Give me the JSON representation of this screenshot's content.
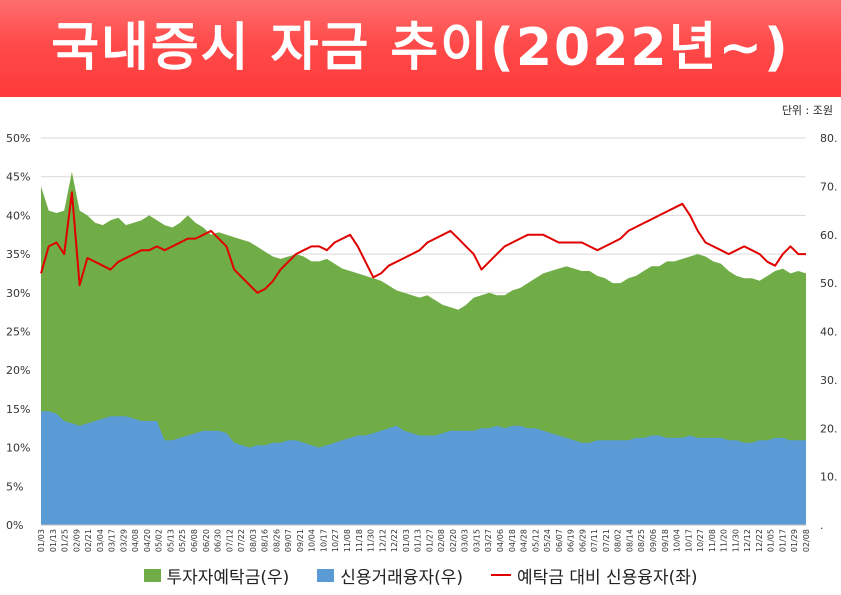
{
  "banner": {
    "title": "국내증시 자금 추이(2022년~)"
  },
  "unit_label": "단위 : 조원",
  "colors": {
    "banner": "#ff4d4d",
    "deposit": "#70ad47",
    "credit": "#5b9bd5",
    "ratio": "#e00000"
  },
  "chart_data": {
    "type": "area",
    "title": "",
    "xlabel": "",
    "ylabel_left": "",
    "ylabel_right": "",
    "left_axis": {
      "ylim": [
        0,
        50
      ],
      "ticks": [
        "0%",
        "5%",
        "10%",
        "15%",
        "20%",
        "25%",
        "30%",
        "35%",
        "40%",
        "45%",
        "50%"
      ]
    },
    "right_axis": {
      "ylim": [
        0,
        80
      ],
      "ticks": [
        ".",
        "10.",
        "20.",
        "30.",
        "40.",
        "50.",
        "60.",
        "70.",
        "80."
      ]
    },
    "grid": true,
    "legend_position": "bottom",
    "x_tick_labels": [
      "01/03",
      "01/13",
      "01/25",
      "02/09",
      "02/21",
      "03/04",
      "03/17",
      "03/29",
      "04/08",
      "04/20",
      "05/02",
      "05/13",
      "05/25",
      "06/08",
      "06/20",
      "06/30",
      "07/12",
      "07/22",
      "08/03",
      "08/16",
      "08/26",
      "09/07",
      "09/21",
      "10/04",
      "10/17",
      "10/27",
      "11/08",
      "11/18",
      "11/30",
      "12/12",
      "12/22",
      "01/03",
      "01/13",
      "01/27",
      "02/08",
      "02/20",
      "03/03",
      "03/15",
      "03/27",
      "04/06",
      "04/18",
      "04/28",
      "05/12",
      "05/24",
      "06/07",
      "06/19",
      "06/29",
      "07/11",
      "07/21",
      "08/02",
      "08/14",
      "08/25",
      "09/06",
      "09/18",
      "10/04",
      "10/17",
      "10/27",
      "11/08",
      "11/20",
      "11/30",
      "12/12",
      "12/22",
      "01/05",
      "01/17",
      "01/29",
      "02/08"
    ],
    "series": [
      {
        "name": "투자자예탁금(우)",
        "axis": "right",
        "kind": "area",
        "values": [
          70,
          65,
          64.5,
          65,
          73,
          65,
          64,
          62.5,
          62,
          63,
          63.5,
          62,
          62.5,
          63,
          64,
          63,
          62,
          61.5,
          62.5,
          64,
          62.5,
          61.5,
          60,
          60.5,
          60,
          59.5,
          59,
          58.5,
          57.5,
          56.5,
          55.5,
          55,
          55.5,
          56,
          55.5,
          54.5,
          54.5,
          55,
          54,
          53,
          52.5,
          52,
          51.5,
          51,
          50.5,
          49.5,
          48.5,
          48,
          47.5,
          47,
          47.5,
          46.5,
          45.5,
          45,
          44.5,
          45.5,
          47,
          47.5,
          48,
          47.5,
          47.5,
          48.5,
          49,
          50,
          51,
          52,
          52.5,
          53,
          53.5,
          53,
          52.5,
          52.5,
          51.5,
          51,
          50,
          50,
          51,
          51.5,
          52.5,
          53.5,
          53.5,
          54.5,
          54.5,
          55,
          55.5,
          56,
          55.5,
          54.5,
          54,
          52.5,
          51.5,
          51,
          51,
          50.5,
          51.5,
          52.5,
          53,
          52,
          52.5,
          52
        ]
      },
      {
        "name": "신용거래융자(우)",
        "axis": "right",
        "kind": "area",
        "values": [
          23.5,
          23.5,
          23,
          21.5,
          21,
          20.5,
          21,
          21.5,
          22,
          22.5,
          22.5,
          22.5,
          22,
          21.5,
          21.5,
          21.5,
          17.5,
          17.5,
          18,
          18.5,
          19,
          19.5,
          19.5,
          19.5,
          19,
          17,
          16.5,
          16,
          16.5,
          16.5,
          17,
          17,
          17.5,
          17.5,
          17,
          16.5,
          16,
          16.5,
          17,
          17.5,
          18,
          18.5,
          18.5,
          19,
          19.5,
          20,
          20.5,
          19.5,
          19,
          18.5,
          18.5,
          18.5,
          19,
          19.5,
          19.5,
          19.5,
          19.5,
          20,
          20,
          20.5,
          20,
          20.5,
          20.5,
          20,
          20,
          19.5,
          19,
          18.5,
          18,
          17.5,
          17,
          17,
          17.5,
          17.5,
          17.5,
          17.5,
          17.5,
          18,
          18,
          18.5,
          18.5,
          18,
          18,
          18,
          18.5,
          18,
          18,
          18,
          18,
          17.5,
          17.5,
          17,
          17,
          17.5,
          17.5,
          18,
          18,
          17.5,
          17.5,
          17.5
        ]
      },
      {
        "name": "예탁금 대비 신용융자(좌)",
        "axis": "left",
        "kind": "line",
        "values": [
          32.5,
          36,
          36.5,
          35,
          43,
          31,
          34.5,
          34,
          33.5,
          33,
          34,
          34.5,
          35,
          35.5,
          35.5,
          36,
          35.5,
          36,
          36.5,
          37,
          37,
          37.5,
          38,
          37,
          36,
          33,
          32,
          31,
          30,
          30.5,
          31.5,
          33,
          34,
          35,
          35.5,
          36,
          36,
          35.5,
          36.5,
          37,
          37.5,
          36,
          34,
          32,
          32.5,
          33.5,
          34,
          34.5,
          35,
          35.5,
          36.5,
          37,
          37.5,
          38,
          37,
          36,
          35,
          33,
          34,
          35,
          36,
          36.5,
          37,
          37.5,
          37.5,
          37.5,
          37,
          36.5,
          36.5,
          36.5,
          36.5,
          36,
          35.5,
          36,
          36.5,
          37,
          38,
          38.5,
          39,
          39.5,
          40,
          40.5,
          41,
          41.5,
          40,
          38,
          36.5,
          36,
          35.5,
          35,
          35.5,
          36,
          35.5,
          35,
          34,
          33.5,
          35,
          36,
          35,
          35
        ]
      }
    ]
  }
}
